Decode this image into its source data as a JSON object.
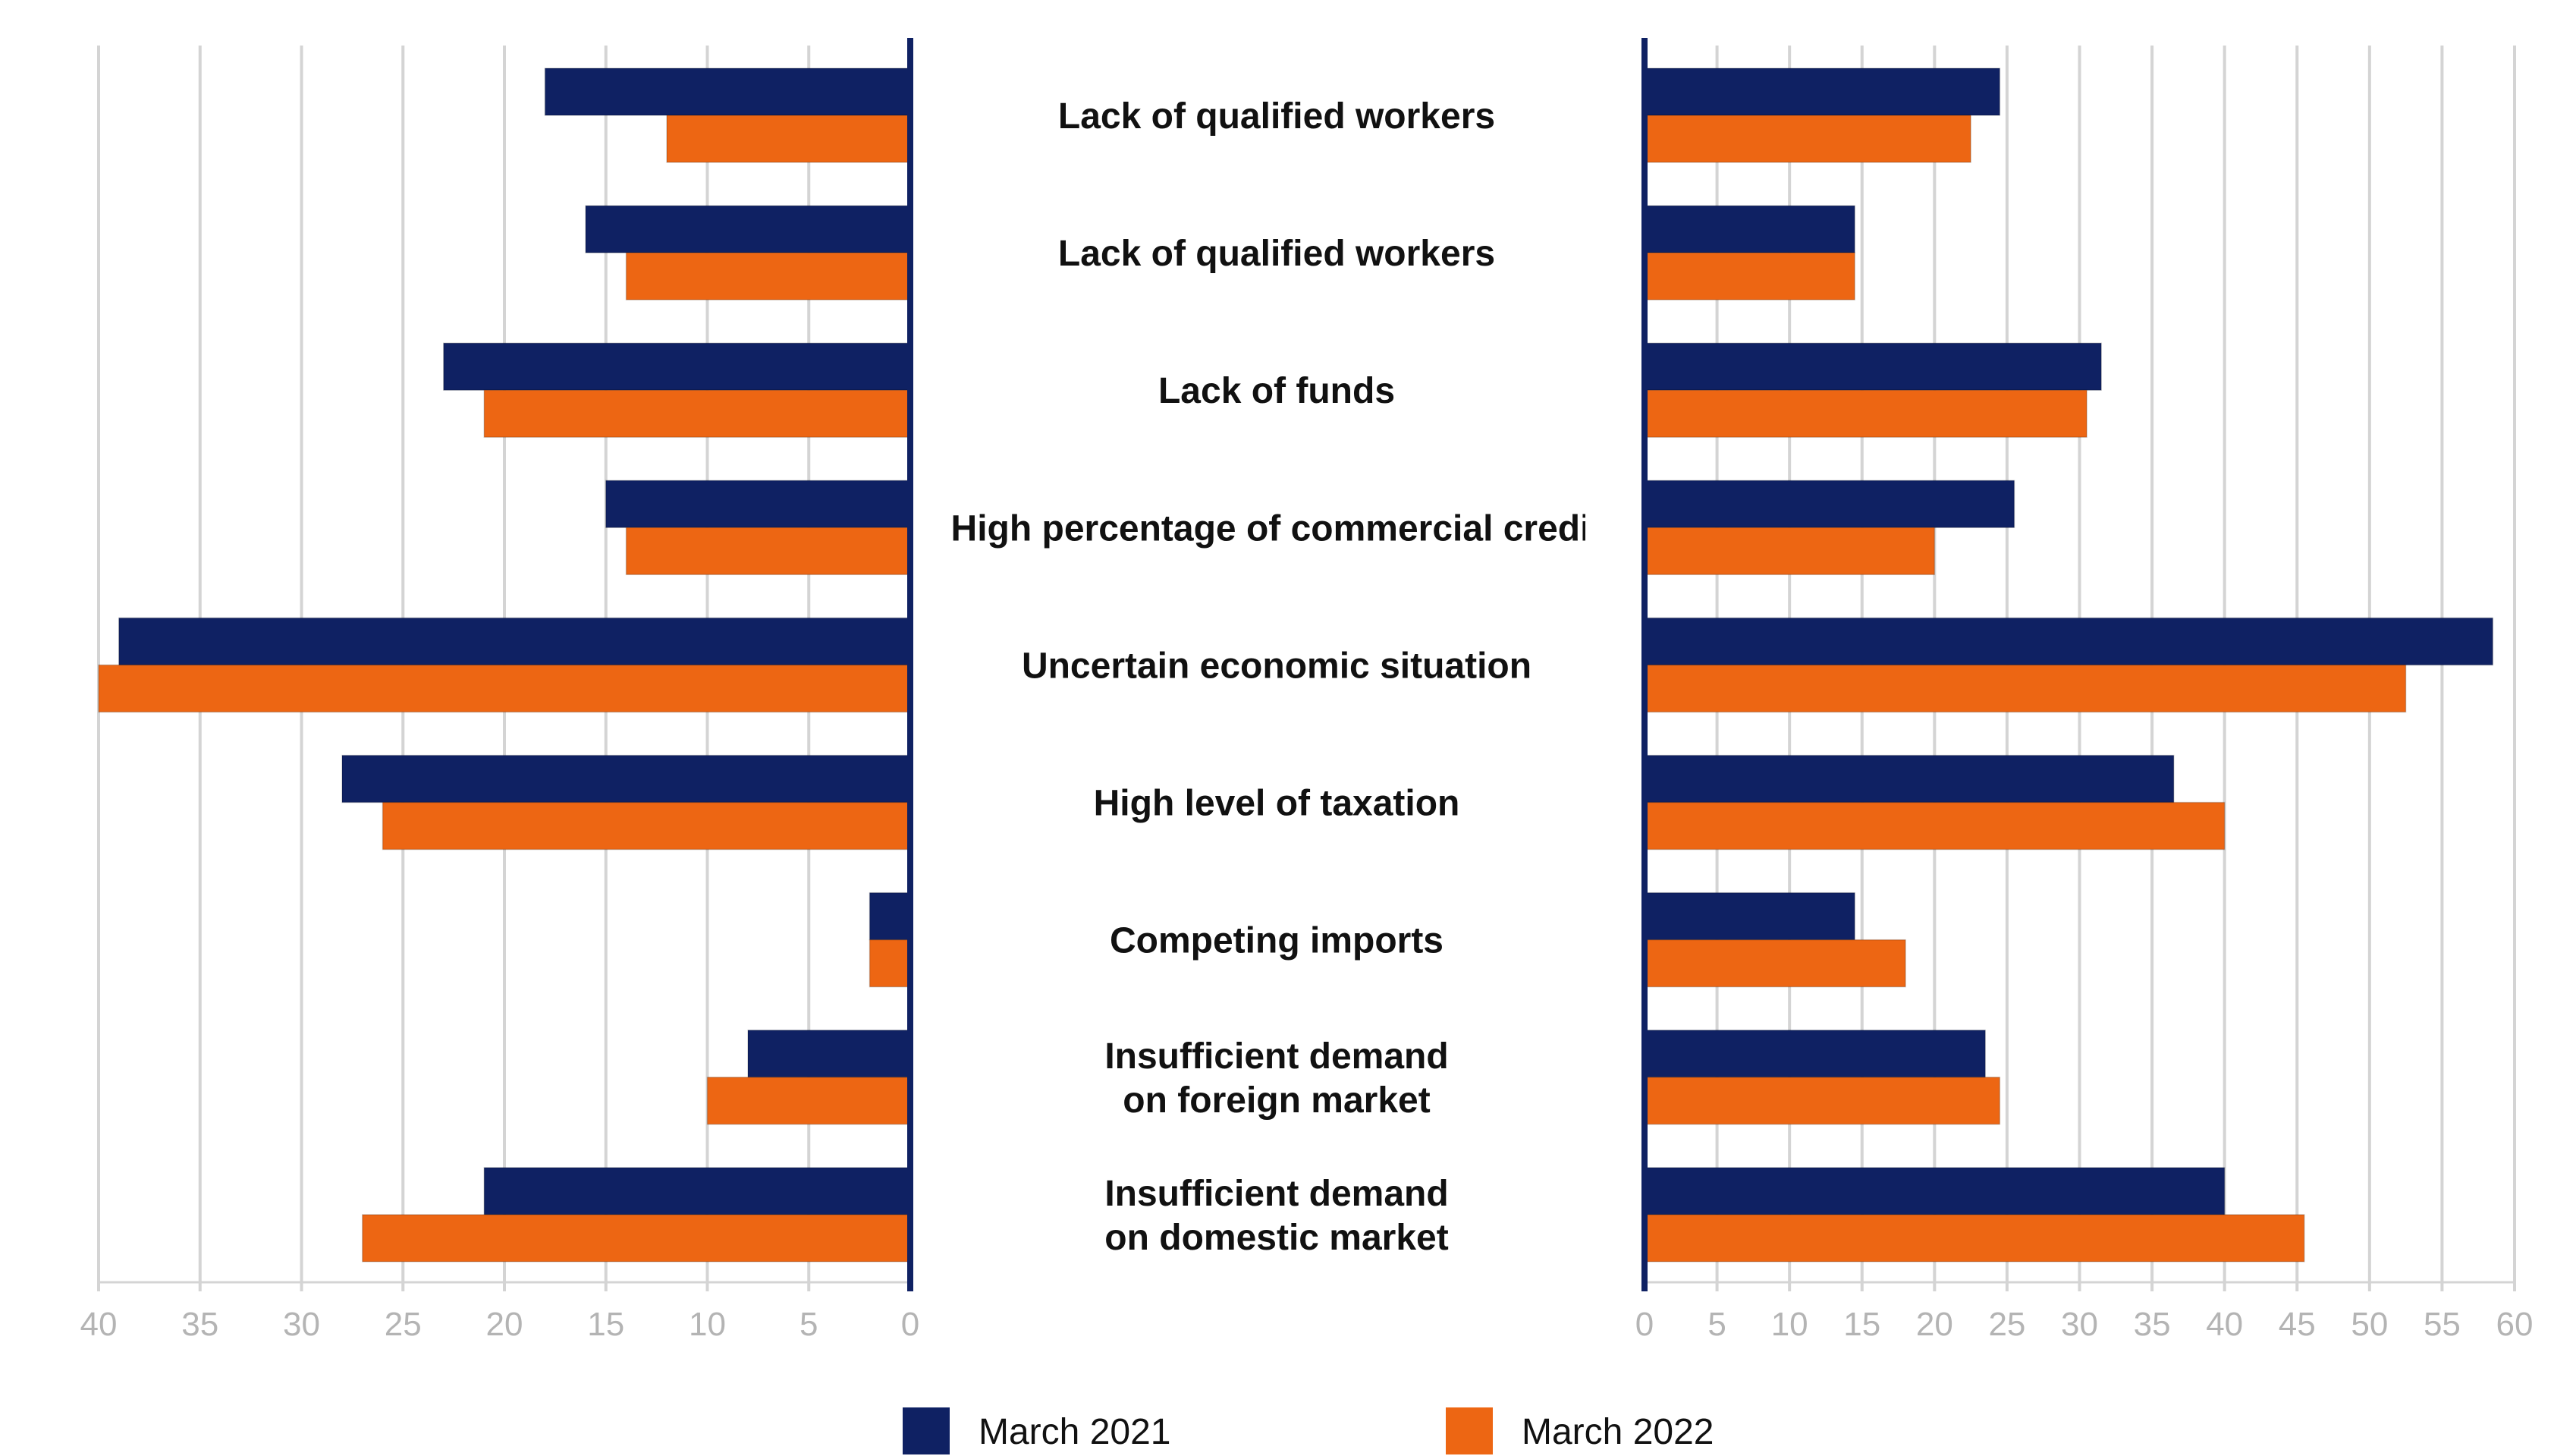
{
  "chart_data": {
    "type": "bar",
    "orientation": "horizontal",
    "colors": {
      "March 2021": "#0f2163",
      "March 2022": "#ed6613",
      "grid": "#d4d4d4",
      "axis": "#0f2163"
    },
    "categories": [
      [
        "Lack of qualified workers"
      ],
      [
        "Lack of qualified workers"
      ],
      [
        "Lack of funds"
      ],
      [
        "High percentage of commercial credit"
      ],
      [
        "Uncertain economic situation"
      ],
      [
        "High level of taxation"
      ],
      [
        "Competing imports"
      ],
      [
        "Insufficient demand",
        "on foreign market"
      ],
      [
        "Insufficient demand",
        "on domestic market"
      ]
    ],
    "panels": [
      {
        "side": "left",
        "xlim": [
          0,
          40
        ],
        "reversed": true,
        "ticks": [
          "40",
          "35",
          "30",
          "25",
          "20",
          "15",
          "10",
          "5",
          "0"
        ],
        "series": [
          {
            "name": "March 2021",
            "values": [
              18,
              16,
              23,
              15,
              39,
              28,
              2,
              8,
              21
            ]
          },
          {
            "name": "March 2022",
            "values": [
              12,
              14,
              21,
              14,
              40,
              26,
              2,
              10,
              27
            ]
          }
        ]
      },
      {
        "side": "right",
        "xlim": [
          0,
          60
        ],
        "reversed": false,
        "ticks": [
          "0",
          "5",
          "10",
          "15",
          "20",
          "25",
          "30",
          "35",
          "40",
          "45",
          "50",
          "55",
          "60"
        ],
        "series": [
          {
            "name": "March 2021",
            "values": [
              24.5,
              14.5,
              31.5,
              25.5,
              58.5,
              36.5,
              14.5,
              23.5,
              40
            ]
          },
          {
            "name": "March 2022",
            "values": [
              22.5,
              14.5,
              30.5,
              20,
              52.5,
              40,
              18,
              24.5,
              45.5
            ]
          }
        ]
      }
    ],
    "legend": [
      "March 2021",
      "March 2022"
    ],
    "title": "",
    "xlabel": "",
    "ylabel": ""
  }
}
